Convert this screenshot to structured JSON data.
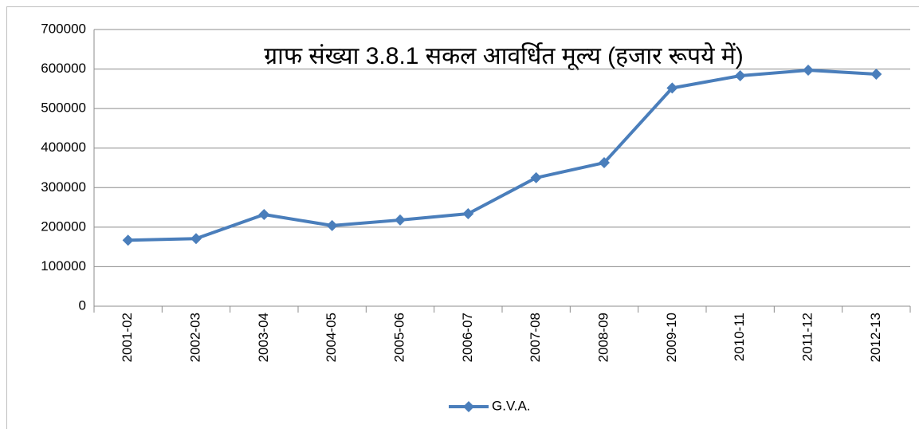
{
  "chart_data": {
    "type": "line",
    "title": "ग्राफ संख्या 3.8.1 सकल आवर्धित मूल्य (हजार रूपये में)",
    "categories": [
      "2001-02",
      "2002-03",
      "2003-04",
      "2004-05",
      "2005-06",
      "2006-07",
      "2007-08",
      "2008-09",
      "2009-10",
      "2010-11",
      "2011-12",
      "2012-13"
    ],
    "series": [
      {
        "name": "G.V.A.",
        "color": "#4a7ebb",
        "values": [
          167000,
          171000,
          232000,
          204000,
          218000,
          234000,
          325000,
          363000,
          552000,
          583000,
          597000,
          587000
        ]
      }
    ],
    "ylim": [
      0,
      700000
    ],
    "yticks": [
      0,
      100000,
      200000,
      300000,
      400000,
      500000,
      600000,
      700000
    ],
    "grid": true,
    "legend": "bottom"
  }
}
